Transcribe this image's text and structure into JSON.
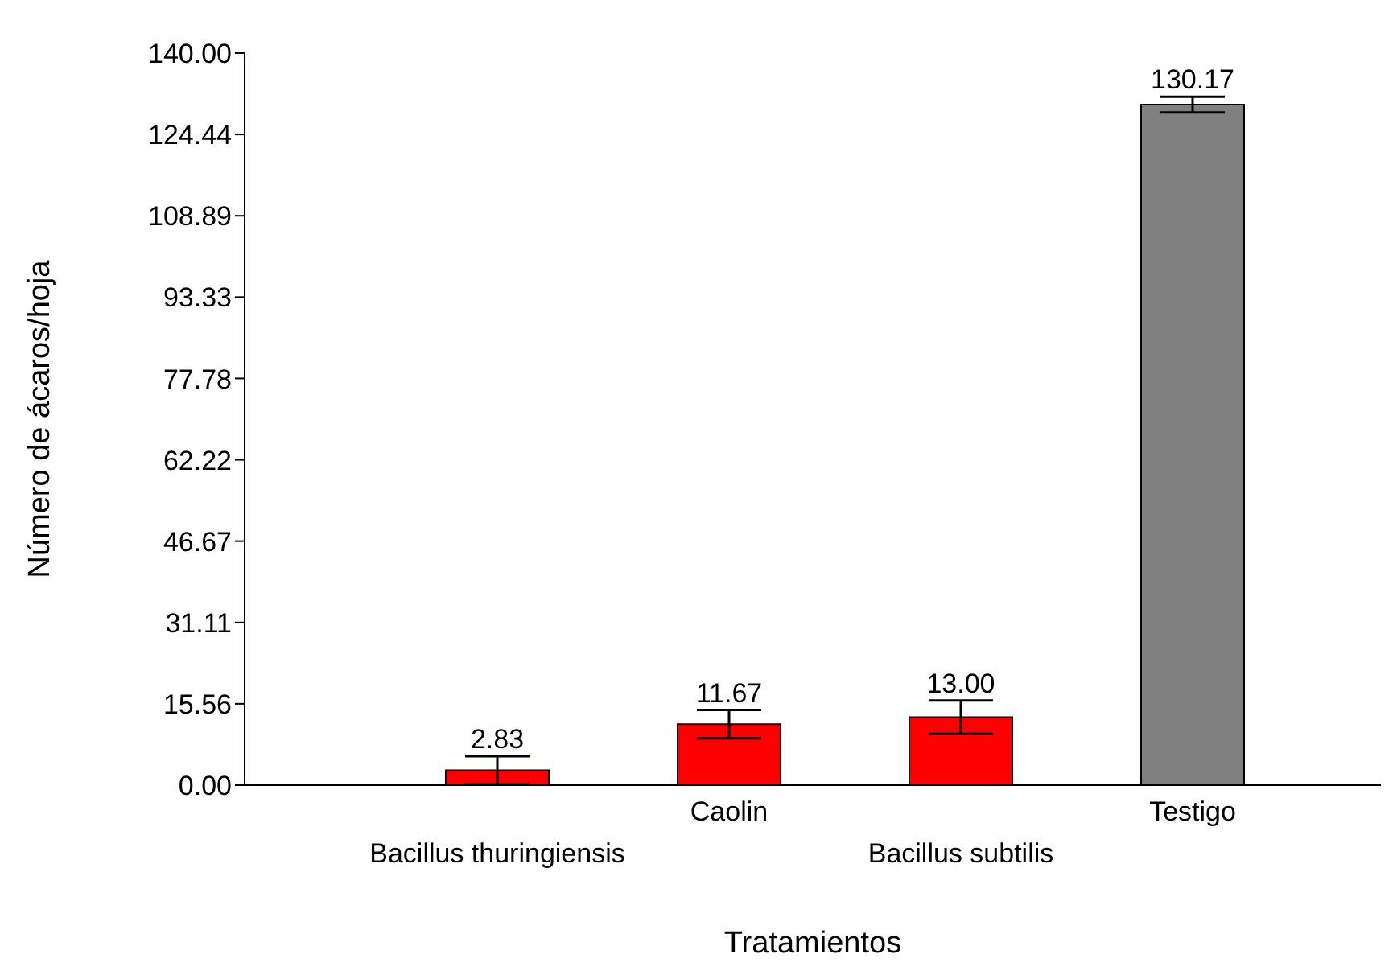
{
  "chart_data": {
    "type": "bar",
    "xlabel": "Tratamientos",
    "ylabel": "Número de ácaros/hoja",
    "categories": [
      "Bacillus  thuringiensis",
      "Caolin",
      "Bacillus subtilis",
      "Testigo"
    ],
    "values": [
      2.83,
      11.67,
      13.0,
      130.17
    ],
    "errors": [
      2.7,
      2.7,
      3.2,
      1.5
    ],
    "colors": [
      "#ff0000",
      "#ff0000",
      "#ff0000",
      "#808080"
    ],
    "value_labels": [
      "2.83",
      "11.67",
      "13.00",
      "130.17"
    ],
    "ylim": [
      0,
      140
    ],
    "yticks": [
      {
        "value": 0,
        "label": "0.00"
      },
      15.56,
      31.11,
      46.67,
      62.22,
      77.78,
      93.33,
      108.89,
      124.44,
      {
        "value": 140,
        "label": "140.00"
      }
    ],
    "grid": false,
    "legend": false
  }
}
